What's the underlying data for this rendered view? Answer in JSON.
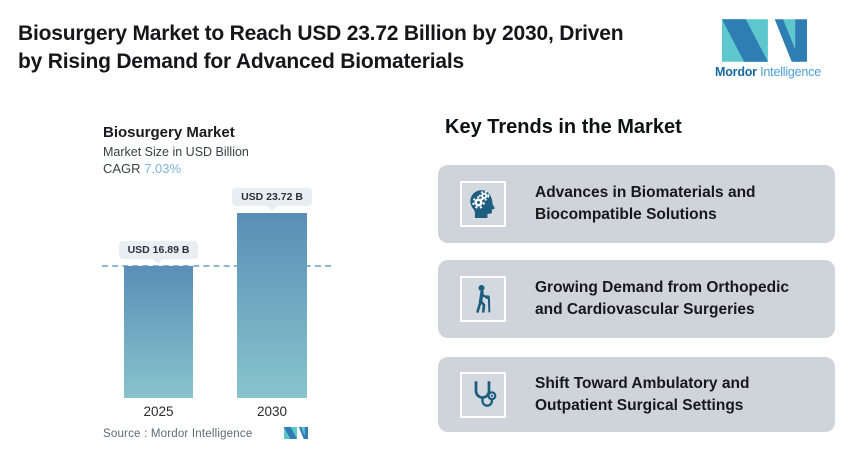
{
  "header": {
    "title_line1": "Biosurgery Market to Reach USD 23.72 Billion by 2030, Driven",
    "title_line2": "by Rising Demand for Advanced Biomaterials"
  },
  "brand": {
    "name_bold": "Mordor",
    "name_regular": "Intelligence",
    "logo_teal": "#5cc8ce",
    "logo_blue": "#2e7eb4"
  },
  "chart": {
    "title": "Biosurgery Market",
    "subtitle": "Market Size in USD Billion",
    "cagr_label": "CAGR",
    "cagr_value": "7.03%",
    "source": "Source :  Mordor Intelligence"
  },
  "chart_data": {
    "type": "bar",
    "title": "Biosurgery Market",
    "subtitle": "Market Size in USD Billion",
    "unit": "USD Billion",
    "cagr": "7.03%",
    "categories": [
      "2025",
      "2030"
    ],
    "values": [
      16.89,
      23.72
    ],
    "data_labels": [
      "USD 16.89 B",
      "USD 23.72 B"
    ],
    "baseline_marker": 16.89,
    "ylim": [
      0,
      23.72
    ],
    "bar_gradient_top": "#5a8eb7",
    "bar_gradient_bottom": "#88c4cc",
    "dash_line_color": "#8cb8d6"
  },
  "trends": {
    "heading": "Key Trends in the Market",
    "card_bg": "#ced4da",
    "icon_color": "#1d5d80",
    "cards": [
      {
        "icon": "head-gears-icon",
        "line1": "Advances in Biomaterials and",
        "line2": "Biocompatible Solutions"
      },
      {
        "icon": "person-cane-icon",
        "line1": "Growing Demand from Orthopedic",
        "line2": "and Cardiovascular Surgeries"
      },
      {
        "icon": "stethoscope-icon",
        "line1": "Shift Toward Ambulatory and",
        "line2": "Outpatient Surgical Settings"
      }
    ]
  }
}
